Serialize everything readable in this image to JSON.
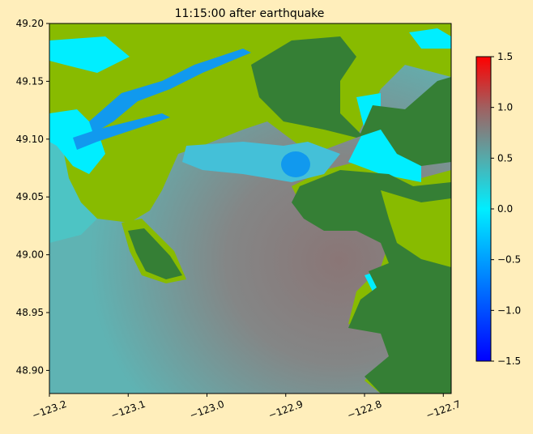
{
  "chart_data": {
    "type": "heatmap",
    "title": "11:15:00 after earthquake",
    "xlabel": "",
    "ylabel": "",
    "xlim": [
      -123.2,
      -122.69
    ],
    "ylim": [
      48.88,
      49.2
    ],
    "x_ticks": [
      -123.2,
      -123.1,
      -123.0,
      -122.9,
      -122.8,
      -122.7
    ],
    "x_tick_labels": [
      "−123.2",
      "−123.1",
      "−123.0",
      "−122.9",
      "−122.8",
      "−122.7"
    ],
    "y_ticks": [
      48.9,
      48.95,
      49.0,
      49.05,
      49.1,
      49.15,
      49.2
    ],
    "y_tick_labels": [
      "48.90",
      "48.95",
      "49.00",
      "49.05",
      "49.10",
      "49.15",
      "49.20"
    ],
    "colorbar": {
      "range": [
        -1.5,
        1.5
      ],
      "ticks": [
        -1.5,
        -1.0,
        -0.5,
        0.0,
        0.5,
        1.0,
        1.5
      ],
      "tick_labels": [
        "−1.5",
        "−1.0",
        "−0.5",
        "0.0",
        "0.5",
        "1.0",
        "1.5"
      ],
      "colors": [
        "#0000ff",
        "#00eeff",
        "#55aaaa",
        "#ff0000"
      ]
    },
    "grid": false,
    "colors": {
      "land_low": "#88bb00",
      "land_high": "#357f35",
      "water_dry": "#00eeff",
      "river": "#1199ee",
      "sea_base": "#5fb3b3",
      "sea_high": "#8a7a7a"
    }
  }
}
